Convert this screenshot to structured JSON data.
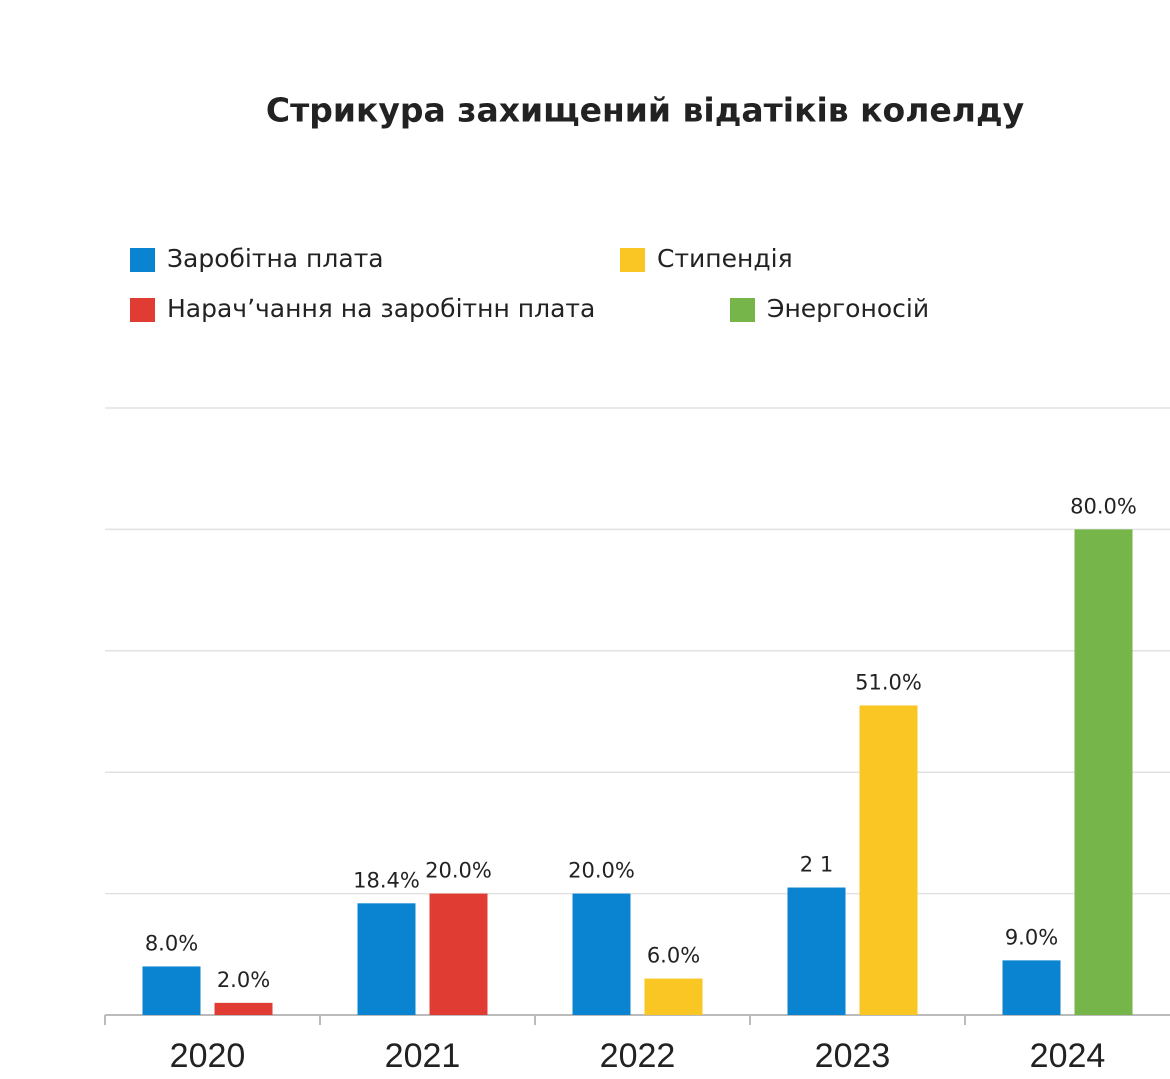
{
  "chart_data": {
    "type": "bar",
    "title": "Стрикура захищений відатіків колелду",
    "categories": [
      "2020",
      "2021",
      "2022",
      "2023",
      "2024"
    ],
    "series": [
      {
        "name": "Заробітна плата",
        "color": "#0a84d0",
        "values": [
          8,
          18.4,
          20,
          21,
          9
        ],
        "value_labels": [
          "8.0%",
          "18.4%",
          "20.0%",
          "2 1",
          "9.0%"
        ]
      },
      {
        "name": "Нарачʼчання на заробітнн плата",
        "color": "#e03c34",
        "values": [
          2,
          20,
          null,
          null,
          null
        ],
        "value_labels": [
          "2.0%",
          "20.0%",
          null,
          null,
          null
        ]
      },
      {
        "name": "Стипендія",
        "color": "#f9c623",
        "values": [
          null,
          null,
          6,
          51,
          null
        ],
        "value_labels": [
          null,
          null,
          "6.0%",
          "51.0%",
          null
        ]
      },
      {
        "name": "Энергоносій",
        "color": "#76b54a",
        "values": [
          null,
          null,
          null,
          null,
          80
        ],
        "value_labels": [
          null,
          null,
          null,
          null,
          "80.0%"
        ]
      }
    ],
    "ylim": [
      0,
      100
    ],
    "yticks": [
      20,
      40,
      60,
      80,
      100
    ],
    "grid": true
  }
}
